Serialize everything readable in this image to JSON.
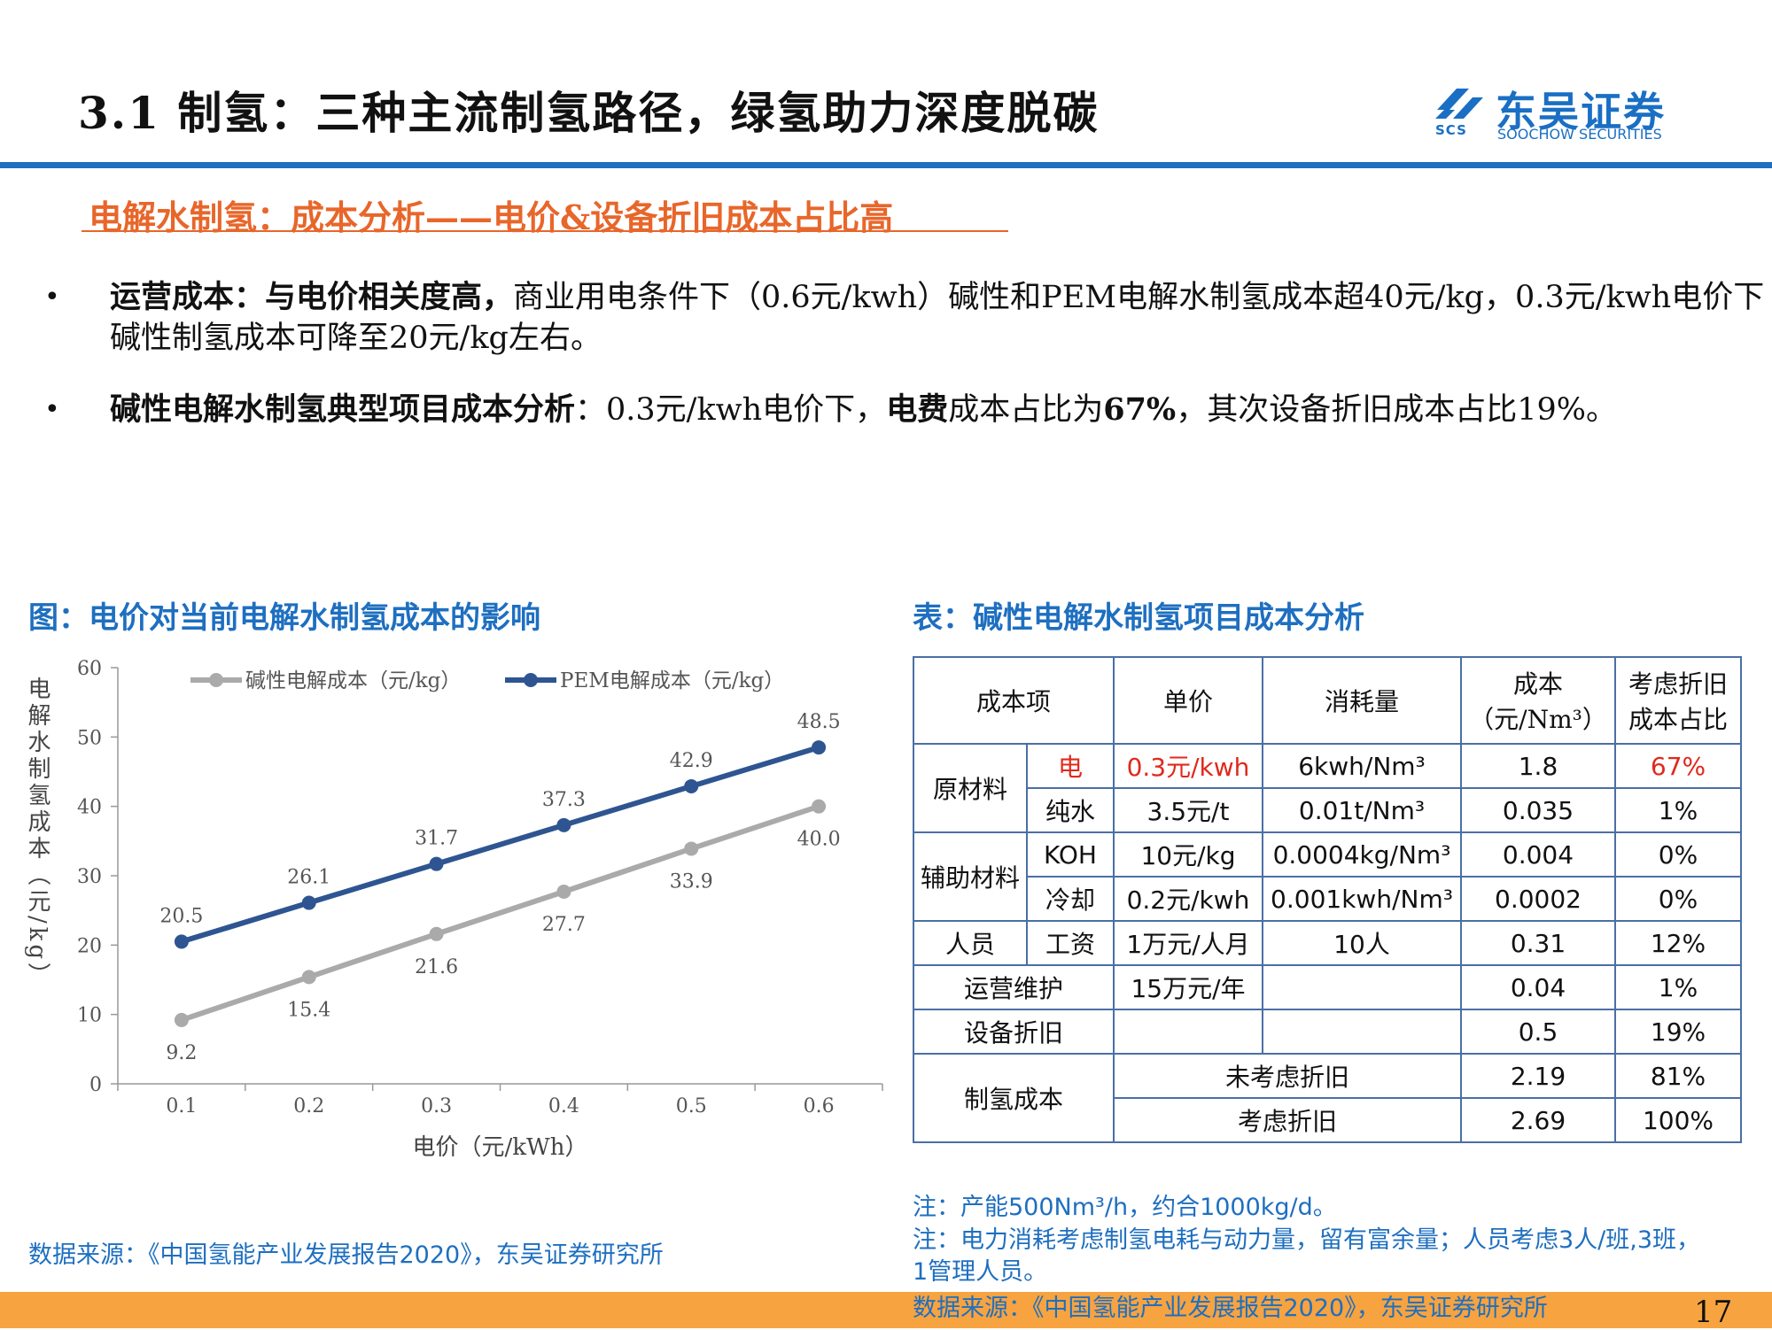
{
  "header": {
    "title": "3.1 制氢：三种主流制氢路径，绿氢助力深度脱碳",
    "logo": {
      "cn": "东吴证券",
      "en": "SOOCHOW SECURITIES",
      "mark": "SCS",
      "icon": "soochow-logo-icon"
    }
  },
  "subtitle": "电解水制氢：成本分析——电价&设备折旧成本占比高",
  "bullets": [
    {
      "bold": "运营成本：与电价相关度高，",
      "text": "商业用电条件下（0.6元/kwh）碱性和PEM电解水制氢成本超40元/kg，0.3元/kwh电价下碱性制氢成本可降至20元/kg左右。"
    },
    {
      "bold": "碱性电解水制氢典型项目成本分析",
      "text_a": "：0.3元/kwh电价下，",
      "bold_b": "电费",
      "text_b": "成本占比为",
      "bold_c": "67%",
      "text_c": "，其次设备折旧成本占比19%。"
    }
  ],
  "chart_section_title": "图：电价对当前电解水制氢成本的影响",
  "table_section_title": "表：碱性电解水制氢项目成本分析",
  "chart_data": {
    "type": "line",
    "x": [
      0.1,
      0.2,
      0.3,
      0.4,
      0.5,
      0.6
    ],
    "x_tick_labels": [
      "0.1",
      "0.2",
      "0.3",
      "0.4",
      "0.5",
      "0.6"
    ],
    "series": [
      {
        "name": "碱性电解成本（元/kg）",
        "values": [
          9.2,
          15.4,
          21.6,
          27.7,
          33.9,
          40.0
        ],
        "labels": [
          "9.2",
          "15.4",
          "21.6",
          "27.7",
          "33.9",
          "40.0"
        ],
        "color": "#aaaaaa"
      },
      {
        "name": "PEM电解成本（元/kg）",
        "values": [
          20.5,
          26.1,
          31.7,
          37.3,
          42.9,
          48.5
        ],
        "labels": [
          "20.5",
          "26.1",
          "31.7",
          "37.3",
          "42.9",
          "48.5"
        ],
        "color": "#2e5591"
      }
    ],
    "xlabel": "电价（元/kWh）",
    "ylabel": "电解水制氢成本（元/kg）",
    "ylim": [
      0,
      60
    ],
    "y_ticks": [
      0,
      10,
      20,
      30,
      40,
      50,
      60
    ],
    "legend": "top",
    "grid": false
  },
  "chart_source": "数据来源：《中国氢能产业发展报告2020》，东吴证券研究所",
  "table": {
    "headers": [
      "成本项",
      "单价",
      "消耗量",
      "成本（元/Nm³）",
      "考虑折旧成本占比"
    ],
    "header_cost_line1": "成本",
    "header_cost_line2": "（元/Nm³）",
    "header_share_line1": "考虑折旧",
    "header_share_line2": "成本占比",
    "groups": {
      "raw": "原材料",
      "aux": "辅助材料",
      "staff": "人员",
      "hydrogen_cost": "制氢成本"
    },
    "rows": [
      {
        "item": "电",
        "price": "0.3元/kwh",
        "usage": "6kwh/Nm³",
        "cost": "1.8",
        "share": "67%"
      },
      {
        "item": "纯水",
        "price": "3.5元/t",
        "usage": "0.01t/Nm³",
        "cost": "0.035",
        "share": "1%"
      },
      {
        "item": "KOH",
        "price": "10元/kg",
        "usage": "0.0004kg/Nm³",
        "cost": "0.004",
        "share": "0%"
      },
      {
        "item": "冷却",
        "price": "0.2元/kwh",
        "usage": "0.001kwh/Nm³",
        "cost": "0.0002",
        "share": "0%"
      },
      {
        "item": "工资",
        "price": "1万元/人月",
        "usage": "10人",
        "cost": "0.31",
        "share": "12%"
      },
      {
        "item": "运营维护",
        "price": "15万元/年",
        "usage": "",
        "cost": "0.04",
        "share": "1%"
      },
      {
        "item": "设备折旧",
        "price": "",
        "usage": "",
        "cost": "0.5",
        "share": "19%"
      },
      {
        "item": "未考虑折旧",
        "cost": "2.19",
        "share": "81%"
      },
      {
        "item": "考虑折旧",
        "cost": "2.69",
        "share": "100%"
      }
    ]
  },
  "notes": [
    "注：产能500Nm³/h，约合1000kg/d。",
    "注：电力消耗考虑制氢电耗与动力量，留有富余量；人员考虑3人/班,3班，1管理人员。"
  ],
  "footer_source": "数据来源：《中国氢能产业发展报告2020》，东吴证券研究所",
  "page_number": "17",
  "colors": {
    "accent": "#1e6fc0",
    "orange": "#e8662a",
    "footer": "#f7a340",
    "red": "#e0291b"
  }
}
